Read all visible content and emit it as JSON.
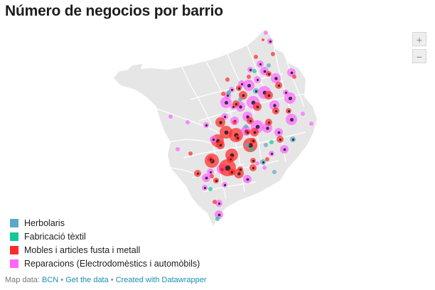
{
  "title": "Número de negocios por barrio",
  "zoom": {
    "in_label": "+",
    "out_label": "−"
  },
  "colors": {
    "herbolaris": "#5aa8c9",
    "textil": "#12c99a",
    "mobles": "#ff2b2b",
    "reparacions": "#ff66ff",
    "land": "#e6e6e6",
    "border": "#ffffff"
  },
  "legend": [
    {
      "label": "Herbolaris",
      "color": "#5aa8c9"
    },
    {
      "label": "Fabricació tèxtil",
      "color": "#12c99a"
    },
    {
      "label": "Mobles i articles fusta i metall",
      "color": "#ff2b2b"
    },
    {
      "label": "Reparacions (Electrodomèstics i automòbils)",
      "color": "#ff66ff"
    }
  ],
  "footer": {
    "prefix": "Map data: ",
    "source": "BCN",
    "get_data": "Get the data",
    "created": "Created with Datawrapper",
    "separator": " • "
  }
}
